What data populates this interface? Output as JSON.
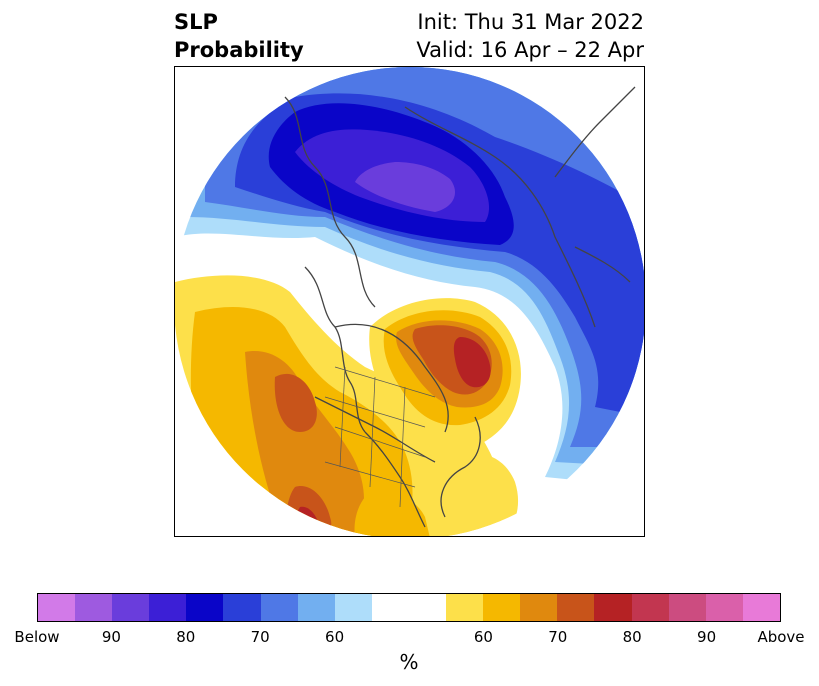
{
  "header": {
    "title_line1": "SLP",
    "title_line2": "Probability",
    "init_text": "Init: Thu 31 Mar 2022",
    "valid_text": "Valid: 16 Apr – 22 Apr"
  },
  "colorbar": {
    "segments": [
      {
        "color": "#d27ae8"
      },
      {
        "color": "#9e5ae0"
      },
      {
        "color": "#6a3ddc"
      },
      {
        "color": "#3c1fd6"
      },
      {
        "color": "#0a05c8"
      },
      {
        "color": "#2a3fd8"
      },
      {
        "color": "#4f78e6"
      },
      {
        "color": "#72aff0"
      },
      {
        "color": "#aeddfa"
      },
      {
        "color": "#ffffff"
      },
      {
        "color": "#ffffff"
      },
      {
        "color": "#fde04a"
      },
      {
        "color": "#f5b800"
      },
      {
        "color": "#e0890e"
      },
      {
        "color": "#c8541a"
      },
      {
        "color": "#b52224"
      },
      {
        "color": "#c23650"
      },
      {
        "color": "#cc4c80"
      },
      {
        "color": "#da60aa"
      },
      {
        "color": "#e87ad8"
      }
    ],
    "labels": [
      "Below",
      "90",
      "80",
      "70",
      "60",
      "60",
      "70",
      "80",
      "90",
      "Above"
    ],
    "unit": "%"
  }
}
